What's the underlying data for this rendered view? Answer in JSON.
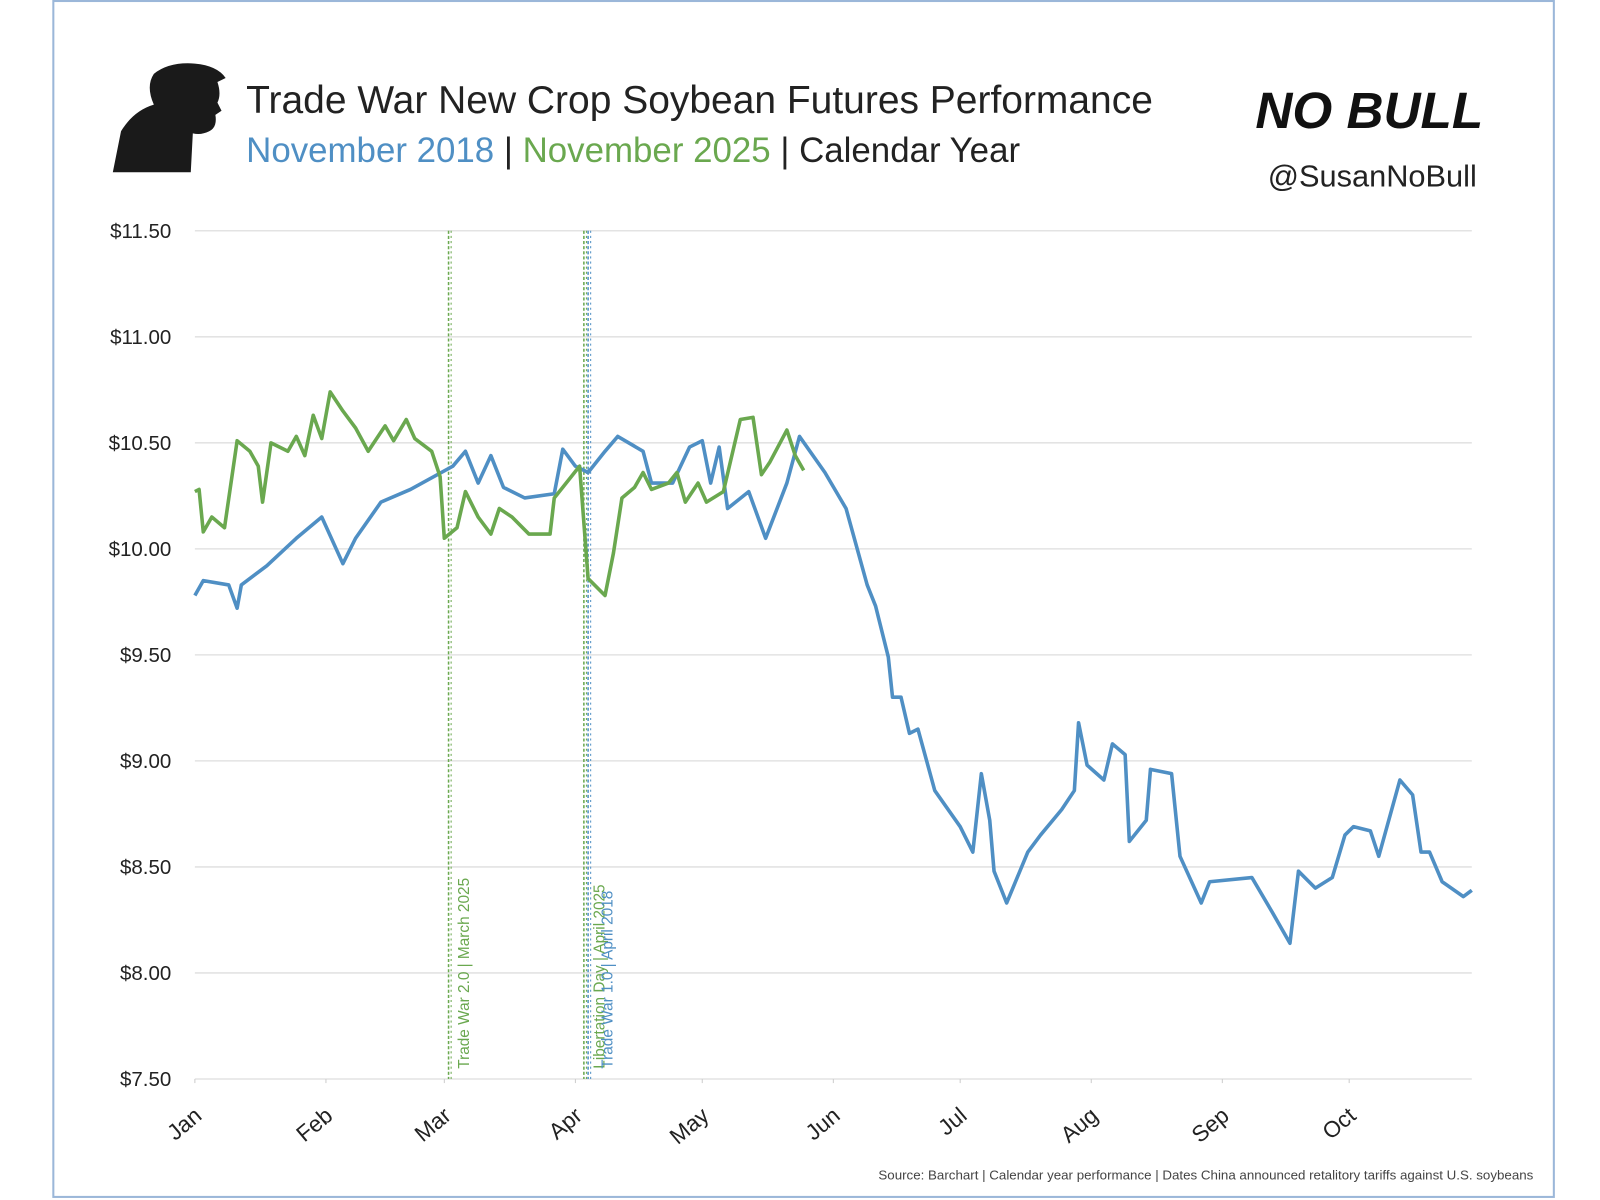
{
  "chart_data": {
    "type": "line",
    "title": "Trade War New Crop Soybean Futures Performance",
    "subtitle_separator": "|",
    "subtitle_suffix": "Calendar Year",
    "brand": "NO BULL",
    "handle": "@SusanNoBull",
    "source": "Source: Barchart | Calendar year performance | Dates China announced retalitory tariffs against U.S. soybeans",
    "xlim": [
      0,
      302
    ],
    "xticks": [
      {
        "value": 0,
        "label": "Jan"
      },
      {
        "value": 31,
        "label": "Feb"
      },
      {
        "value": 59,
        "label": "Mar"
      },
      {
        "value": 90,
        "label": "Apr"
      },
      {
        "value": 120,
        "label": "May"
      },
      {
        "value": 151,
        "label": "Jun"
      },
      {
        "value": 181,
        "label": "Jul"
      },
      {
        "value": 212,
        "label": "Aug"
      },
      {
        "value": 243,
        "label": "Sep"
      },
      {
        "value": 273,
        "label": "Oct"
      }
    ],
    "ylim": [
      7.5,
      11.5
    ],
    "yticks": [
      {
        "value": 7.5,
        "label": "$7.50"
      },
      {
        "value": 8,
        "label": "$8.00"
      },
      {
        "value": 8.5,
        "label": "$8.50"
      },
      {
        "value": 9,
        "label": "$9.00"
      },
      {
        "value": 9.5,
        "label": "$9.50"
      },
      {
        "value": 10,
        "label": "$10.00"
      },
      {
        "value": 10.5,
        "label": "$10.50"
      },
      {
        "value": 11,
        "label": "$11.00"
      },
      {
        "value": 11.5,
        "label": "$11.50"
      }
    ],
    "grid": true,
    "annotations": [
      {
        "text": "Trade War 2.0 | March 2025",
        "x": 60,
        "color": "#6aa84f"
      },
      {
        "text": "Libertation Day | April 2025",
        "x": 92,
        "color": "#6aa84f"
      },
      {
        "text": "Trade War 1.0 | April 2018",
        "x": 93,
        "color": "#4f8fc4"
      }
    ],
    "series": [
      {
        "name": "November 2018",
        "color": "#4f8fc4",
        "x": [
          0,
          2,
          8,
          10,
          11,
          17,
          24,
          30,
          35,
          38,
          44,
          51,
          61,
          64,
          67,
          70,
          73,
          78,
          85,
          87,
          90,
          93,
          97,
          100,
          106,
          108,
          113,
          117,
          120,
          122,
          124,
          126,
          131,
          135,
          140,
          143,
          149,
          154,
          159,
          161,
          164,
          165,
          167,
          169,
          171,
          175,
          181,
          184,
          186,
          188,
          189,
          192,
          197,
          200,
          205,
          208,
          209,
          211,
          215,
          217,
          220,
          221,
          225,
          226,
          231,
          233,
          238,
          240,
          250,
          255,
          259,
          261,
          265,
          269,
          272,
          274,
          278,
          280,
          285,
          288,
          290,
          292,
          295,
          300,
          302
        ],
        "values": [
          9.78,
          9.85,
          9.83,
          9.72,
          9.83,
          9.92,
          10.05,
          10.15,
          9.93,
          10.05,
          10.22,
          10.28,
          10.39,
          10.46,
          10.31,
          10.44,
          10.29,
          10.24,
          10.26,
          10.47,
          10.39,
          10.36,
          10.46,
          10.53,
          10.46,
          10.31,
          10.31,
          10.48,
          10.51,
          10.31,
          10.48,
          10.19,
          10.27,
          10.05,
          10.31,
          10.53,
          10.36,
          10.19,
          9.83,
          9.73,
          9.49,
          9.3,
          9.3,
          9.13,
          9.15,
          8.86,
          8.69,
          8.57,
          8.94,
          8.72,
          8.48,
          8.33,
          8.57,
          8.65,
          8.77,
          8.86,
          9.18,
          8.98,
          8.91,
          9.08,
          9.03,
          8.62,
          8.72,
          8.96,
          8.94,
          8.55,
          8.33,
          8.43,
          8.45,
          8.28,
          8.14,
          8.48,
          8.4,
          8.45,
          8.65,
          8.69,
          8.67,
          8.55,
          8.91,
          8.84,
          8.57,
          8.57,
          8.43,
          8.36,
          8.39
        ]
      },
      {
        "name": "November 2025",
        "color": "#6aa84f",
        "x": [
          0,
          1,
          2,
          4,
          7,
          10,
          13,
          15,
          16,
          18,
          22,
          24,
          26,
          28,
          30,
          32,
          35,
          38,
          41,
          45,
          47,
          50,
          52,
          56,
          58,
          59,
          62,
          64,
          67,
          70,
          72,
          75,
          79,
          84,
          85,
          89,
          91,
          93,
          97,
          99,
          101,
          104,
          106,
          108,
          112,
          114,
          116,
          119,
          121,
          125,
          129,
          132,
          134,
          136,
          140,
          142,
          144
        ],
        "values": [
          10.27,
          10.28,
          10.08,
          10.15,
          10.1,
          10.51,
          10.46,
          10.39,
          10.22,
          10.5,
          10.46,
          10.53,
          10.44,
          10.63,
          10.52,
          10.74,
          10.65,
          10.57,
          10.46,
          10.58,
          10.51,
          10.61,
          10.52,
          10.46,
          10.34,
          10.05,
          10.1,
          10.27,
          10.15,
          10.07,
          10.19,
          10.15,
          10.07,
          10.07,
          10.24,
          10.34,
          10.39,
          9.86,
          9.78,
          9.98,
          10.24,
          10.29,
          10.36,
          10.28,
          10.31,
          10.36,
          10.22,
          10.31,
          10.22,
          10.27,
          10.61,
          10.62,
          10.35,
          10.41,
          10.56,
          10.44,
          10.37
        ]
      }
    ]
  }
}
